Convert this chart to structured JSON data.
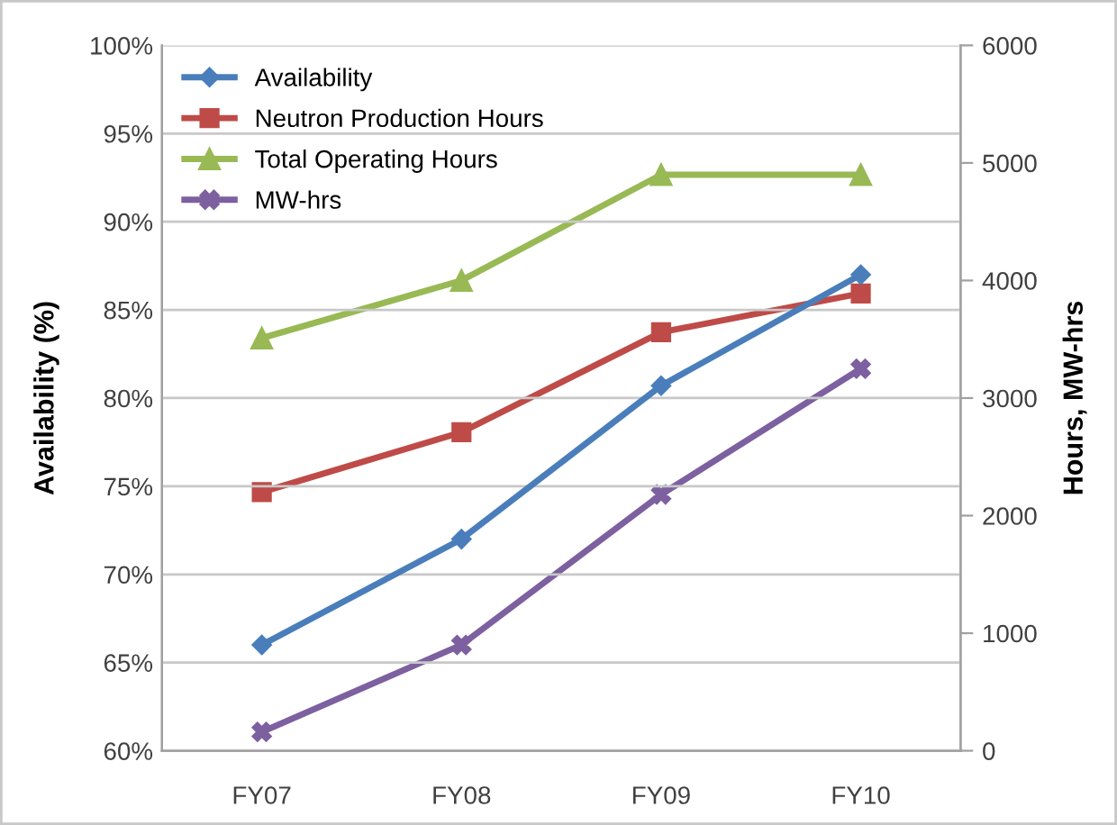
{
  "chart_data": {
    "type": "line",
    "categories": [
      "FY07",
      "FY08",
      "FY09",
      "FY10"
    ],
    "ylabel": "Availability (%)",
    "y2label": "Hours, MW-hrs",
    "ylim": [
      60,
      100
    ],
    "yticks": [
      {
        "value": 60,
        "label": "60%"
      },
      {
        "value": 65,
        "label": "65%"
      },
      {
        "value": 70,
        "label": "70%"
      },
      {
        "value": 75,
        "label": "75%"
      },
      {
        "value": 80,
        "label": "80%"
      },
      {
        "value": 85,
        "label": "85%"
      },
      {
        "value": 90,
        "label": "90%"
      },
      {
        "value": 95,
        "label": "95%"
      },
      {
        "value": 100,
        "label": "100%"
      }
    ],
    "y2lim": [
      0,
      6000
    ],
    "y2ticks": [
      0,
      1000,
      2000,
      3000,
      4000,
      5000,
      6000
    ],
    "grid": "y",
    "legend": "top left",
    "series": [
      {
        "name": "Availability",
        "color": "#4a7ebb",
        "marker": "diamond",
        "values": [
          66,
          72,
          80.7,
          87
        ]
      },
      {
        "name": "Neutron Production Hours",
        "color": "#be4b48",
        "marker": "square",
        "axis": "y2",
        "values": [
          2200,
          2710,
          3560,
          3890
        ]
      },
      {
        "name": "Total Operating Hours",
        "color": "#98b954",
        "marker": "triangle",
        "axis": "y2",
        "values": [
          3510,
          4000,
          4900,
          4900
        ]
      },
      {
        "name": "MW-hrs",
        "color": "#7d60a0",
        "marker": "cross",
        "axis": "y2",
        "values": [
          160,
          900,
          2180,
          3250
        ]
      }
    ]
  }
}
